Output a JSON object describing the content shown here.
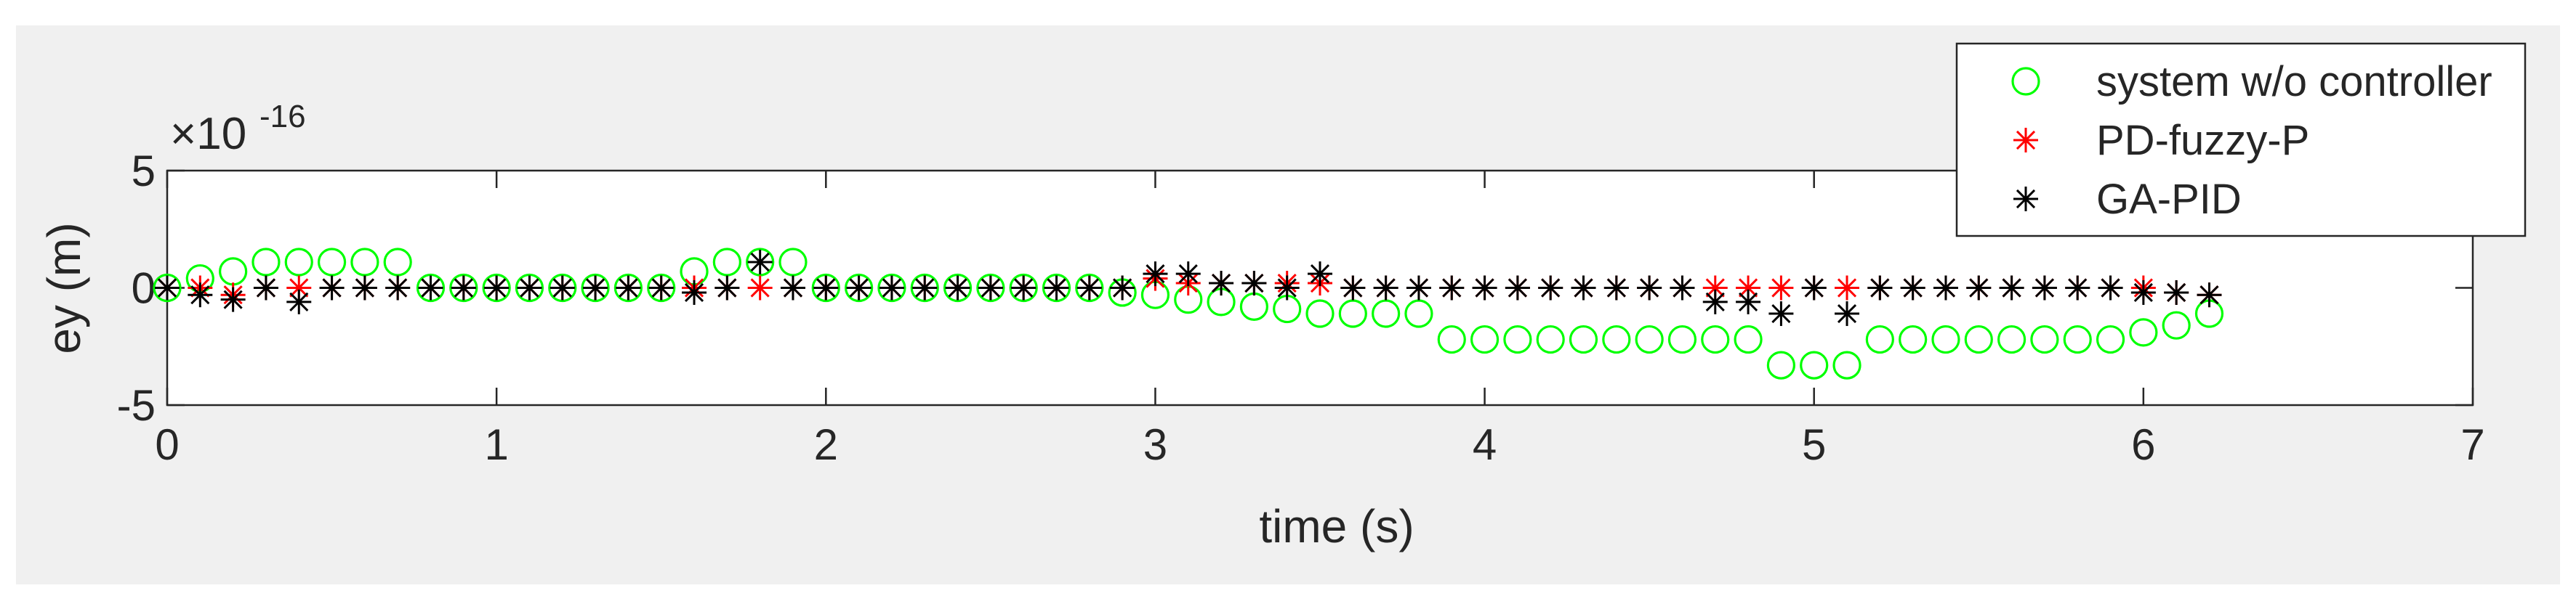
{
  "chart_data": {
    "type": "scatter",
    "xlabel": "time (s)",
    "ylabel": "ey (m)",
    "x_ticks": [
      "0",
      "1",
      "2",
      "3",
      "4",
      "5",
      "6",
      "7"
    ],
    "y_ticks": [
      "-5",
      "0",
      "5"
    ],
    "xlim": [
      0,
      7
    ],
    "ylim": [
      -5,
      5
    ],
    "y_exponent": {
      "base": "×10",
      "power": "-16"
    },
    "legend_position": "top-right",
    "series": [
      {
        "name": "system w/o controller",
        "marker": "circle",
        "color": "#00ff00",
        "x": [
          0,
          0.1,
          0.2,
          0.3,
          0.4,
          0.5,
          0.6,
          0.7,
          0.8,
          0.9,
          1.0,
          1.1,
          1.2,
          1.3,
          1.4,
          1.5,
          1.6,
          1.7,
          1.8,
          1.9,
          2.0,
          2.1,
          2.2,
          2.3,
          2.4,
          2.5,
          2.6,
          2.7,
          2.8,
          2.9,
          3.0,
          3.1,
          3.2,
          3.3,
          3.4,
          3.5,
          3.6,
          3.7,
          3.8,
          3.9,
          4.0,
          4.1,
          4.2,
          4.3,
          4.4,
          4.5,
          4.6,
          4.7,
          4.8,
          4.9,
          5.0,
          5.1,
          5.2,
          5.3,
          5.4,
          5.5,
          5.6,
          5.7,
          5.8,
          5.9,
          6.0,
          6.1,
          6.2
        ],
        "y": [
          0,
          0.4,
          0.7,
          1.1,
          1.1,
          1.1,
          1.1,
          1.1,
          0,
          0,
          0,
          0,
          0,
          0,
          0,
          0,
          0.7,
          1.1,
          1.1,
          1.1,
          0,
          0,
          0,
          0,
          0,
          0,
          0,
          0,
          0,
          -0.2,
          -0.3,
          -0.5,
          -0.6,
          -0.8,
          -0.9,
          -1.1,
          -1.1,
          -1.1,
          -1.1,
          -2.2,
          -2.2,
          -2.2,
          -2.2,
          -2.2,
          -2.2,
          -2.2,
          -2.2,
          -2.2,
          -2.2,
          -3.3,
          -3.3,
          -3.3,
          -2.2,
          -2.2,
          -2.2,
          -2.2,
          -2.2,
          -2.2,
          -2.2,
          -2.2,
          -1.9,
          -1.6,
          -1.1
        ]
      },
      {
        "name": "PD-fuzzy-P",
        "marker": "asterisk",
        "color": "#ff0000",
        "x": [
          0,
          0.1,
          0.2,
          0.3,
          0.4,
          0.5,
          0.6,
          0.7,
          0.8,
          0.9,
          1.0,
          1.1,
          1.2,
          1.3,
          1.4,
          1.5,
          1.6,
          1.7,
          1.8,
          1.9,
          2.0,
          2.1,
          2.2,
          2.3,
          2.4,
          2.5,
          2.6,
          2.7,
          2.8,
          2.9,
          3.0,
          3.1,
          3.2,
          3.3,
          3.4,
          3.5,
          3.6,
          3.7,
          3.8,
          3.9,
          4.0,
          4.1,
          4.2,
          4.3,
          4.4,
          4.5,
          4.6,
          4.7,
          4.8,
          4.9,
          5.0,
          5.1,
          5.2,
          5.3,
          5.4,
          5.5,
          5.6,
          5.7,
          5.8,
          5.9,
          6.0,
          6.1,
          6.2
        ],
        "y": [
          0,
          0,
          -0.3,
          0,
          0,
          0,
          0,
          0,
          0,
          0,
          0,
          0,
          0,
          0,
          0,
          0,
          0,
          0,
          0,
          0,
          0,
          0,
          0,
          0,
          0,
          0,
          0,
          0,
          0,
          0,
          0.4,
          0.2,
          0.2,
          0.2,
          0.2,
          0.2,
          0,
          0,
          0,
          0,
          0,
          0,
          0,
          0,
          0,
          0,
          0,
          0,
          0,
          0,
          0,
          0,
          0,
          0,
          0,
          0,
          0,
          0,
          0,
          0,
          0,
          -0.2,
          -0.3
        ]
      },
      {
        "name": "GA-PID",
        "marker": "asterisk",
        "color": "#000000",
        "x": [
          0,
          0.1,
          0.2,
          0.3,
          0.4,
          0.5,
          0.6,
          0.7,
          0.8,
          0.9,
          1.0,
          1.1,
          1.2,
          1.3,
          1.4,
          1.5,
          1.6,
          1.7,
          1.8,
          1.9,
          2.0,
          2.1,
          2.2,
          2.3,
          2.4,
          2.5,
          2.6,
          2.7,
          2.8,
          2.9,
          3.0,
          3.1,
          3.2,
          3.3,
          3.4,
          3.5,
          3.6,
          3.7,
          3.8,
          3.9,
          4.0,
          4.1,
          4.2,
          4.3,
          4.4,
          4.5,
          4.6,
          4.7,
          4.8,
          4.9,
          5.0,
          5.1,
          5.2,
          5.3,
          5.4,
          5.5,
          5.6,
          5.7,
          5.8,
          5.9,
          6.0,
          6.1,
          6.2
        ],
        "y": [
          0,
          -0.3,
          -0.5,
          0,
          -0.6,
          0,
          0,
          0,
          0,
          0,
          0,
          0,
          0,
          0,
          0,
          0,
          -0.2,
          0,
          1.1,
          0,
          0,
          0,
          0,
          0,
          0,
          0,
          0,
          0,
          0,
          0,
          0.6,
          0.6,
          0.2,
          0.2,
          0,
          0.6,
          0,
          0,
          0,
          0,
          0,
          0,
          0,
          0,
          0,
          0,
          0,
          -0.6,
          -0.6,
          -1.1,
          0,
          -1.1,
          0,
          0,
          0,
          0,
          0,
          0,
          0,
          0,
          -0.2,
          -0.2,
          -0.3
        ]
      }
    ]
  }
}
